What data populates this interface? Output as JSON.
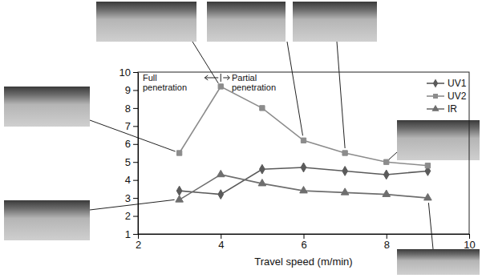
{
  "chart_data": {
    "type": "line",
    "x_label": "Travel speed (m/min)",
    "x": [
      3,
      4,
      5,
      6,
      7,
      8,
      9
    ],
    "series": [
      {
        "name": "UV1",
        "color": "#5a5a5a",
        "marker": "diamond",
        "values": [
          3.4,
          3.2,
          4.6,
          4.7,
          4.5,
          4.3,
          4.5
        ]
      },
      {
        "name": "UV2",
        "color": "#8c8c8c",
        "marker": "square",
        "values": [
          5.5,
          9.2,
          8.0,
          6.2,
          5.5,
          5.0,
          4.8
        ]
      },
      {
        "name": "IR",
        "color": "#6e6e6e",
        "marker": "triangle",
        "values": [
          2.9,
          4.3,
          3.8,
          3.4,
          3.3,
          3.2,
          3.0
        ]
      }
    ],
    "xlim": [
      2,
      10
    ],
    "xticks": [
      2,
      4,
      6,
      8,
      10
    ],
    "ylim": [
      1,
      10
    ],
    "yticks": [
      1,
      2,
      3,
      4,
      5,
      6,
      7,
      8,
      9,
      10
    ],
    "legend": "upper right",
    "annotations": [
      "Full penetration",
      "Partial penetration"
    ]
  }
}
